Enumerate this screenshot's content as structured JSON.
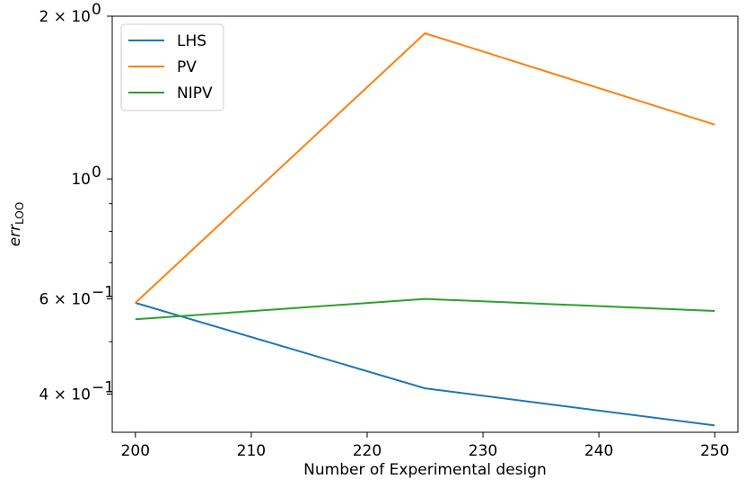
{
  "chart_data": {
    "type": "line",
    "title": "",
    "xlabel": "Number of Experimental design",
    "ylabel": "err",
    "ylabel_subscript": "LOO",
    "y_scale": "log",
    "xlim": [
      198,
      252
    ],
    "ylim": [
      0.34,
      2.0
    ],
    "x_ticks": [
      200,
      210,
      220,
      230,
      240,
      250
    ],
    "x_tick_labels": [
      "200",
      "210",
      "220",
      "230",
      "240",
      "250"
    ],
    "y_major_ticks": [
      {
        "value": 2.0,
        "label": "2 × 10",
        "exp": "0"
      },
      {
        "value": 1.0,
        "label": "10",
        "exp": "0"
      },
      {
        "value": 0.6,
        "label": "6 × 10",
        "exp": "−1"
      },
      {
        "value": 0.4,
        "label": "4 × 10",
        "exp": "−1"
      }
    ],
    "y_minor_ticks": [
      0.5,
      0.7,
      0.8,
      0.9
    ],
    "legend_position": "upper-left",
    "grid": false,
    "x": [
      200,
      225,
      250
    ],
    "series": [
      {
        "name": "LHS",
        "color": "#1f77b4",
        "values": [
          0.59,
          0.41,
          0.35
        ]
      },
      {
        "name": "PV",
        "color": "#ff7f0e",
        "values": [
          0.59,
          1.86,
          1.26
        ]
      },
      {
        "name": "NIPV",
        "color": "#2ca02c",
        "values": [
          0.55,
          0.6,
          0.57
        ]
      }
    ]
  }
}
